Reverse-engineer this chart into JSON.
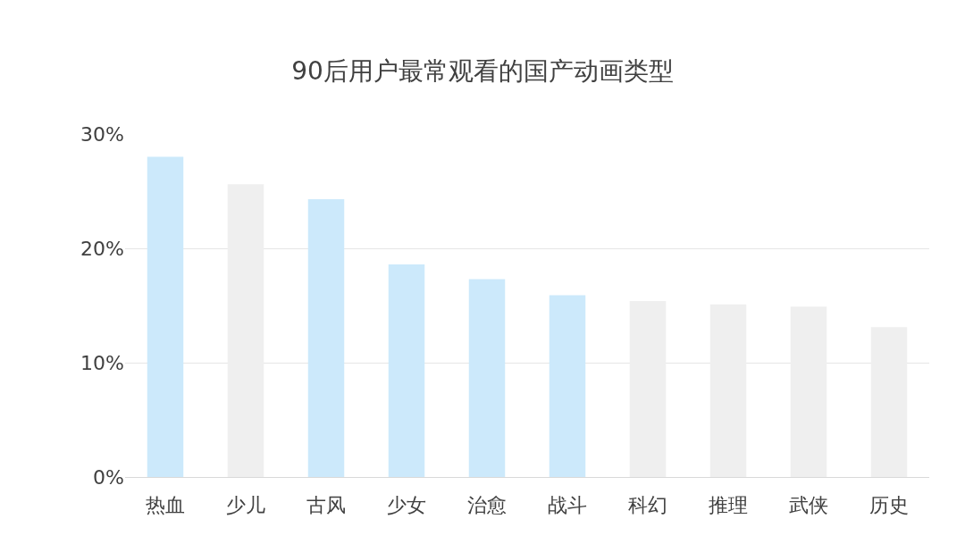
{
  "chart_data": {
    "type": "bar",
    "title": "90后用户最常观看的国产动画类型",
    "categories": [
      "热血",
      "少儿",
      "古风",
      "少女",
      "治愈",
      "战斗",
      "科幻",
      "推理",
      "武侠",
      "历史"
    ],
    "values": [
      28.0,
      25.6,
      24.3,
      18.6,
      17.3,
      15.9,
      15.4,
      15.1,
      14.9,
      13.1
    ],
    "colors": [
      "#cce9fb",
      "#efefef",
      "#cce9fb",
      "#cce9fb",
      "#cce9fb",
      "#cce9fb",
      "#efefef",
      "#efefef",
      "#efefef",
      "#efefef"
    ],
    "ylim": [
      0,
      30
    ],
    "yticks": [
      {
        "value": 0,
        "label": "0%"
      },
      {
        "value": 10,
        "label": "10%"
      },
      {
        "value": 20,
        "label": "20%"
      },
      {
        "value": 30,
        "label": "30%"
      }
    ],
    "grid": "y"
  }
}
